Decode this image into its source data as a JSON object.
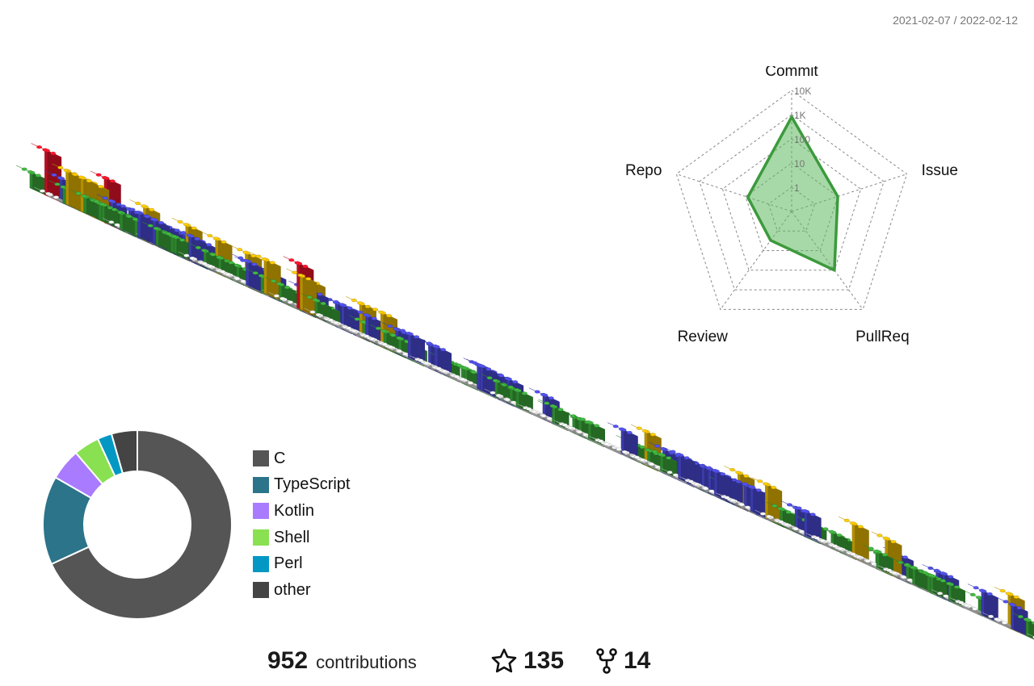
{
  "period": "2021-02-07 / 2022-02-12",
  "colors": {
    "C": "#555555",
    "TypeScript": "#2b7489",
    "Kotlin": "#a97bff",
    "Shell": "#89e051",
    "Perl": "#0298c3",
    "other": "#444444",
    "brick_green": "#3aa83a",
    "brick_blue": "#4a4ad8",
    "brick_yellow": "#e6b800",
    "brick_red": "#e8142a",
    "brick_empty": "#e6e6e6",
    "radar_fill": "#5fb85f"
  },
  "summary": {
    "contributions": "952",
    "contributions_label": "contributions",
    "stars": "135",
    "forks": "14"
  },
  "chart_data": [
    {
      "type": "heatmap",
      "description_of_encoding": "isometric contribution calendar, brick height = activity level",
      "weeks": 53,
      "days_per_week": 7,
      "levels": [
        0,
        1,
        2,
        3,
        4
      ]
    },
    {
      "type": "radar",
      "axes": [
        "Commit",
        "Issue",
        "PullReq",
        "Review",
        "Repo"
      ],
      "scale": "log",
      "tick_labels": [
        "1",
        "10",
        "100",
        "1K",
        "10K"
      ],
      "values": [
        800,
        10,
        100,
        3,
        8
      ]
    },
    {
      "type": "pie",
      "categories": [
        "C",
        "TypeScript",
        "Kotlin",
        "Shell",
        "Perl",
        "other"
      ],
      "values": [
        69.5,
        15.5,
        5.5,
        4.5,
        2.5,
        4.5
      ]
    }
  ]
}
